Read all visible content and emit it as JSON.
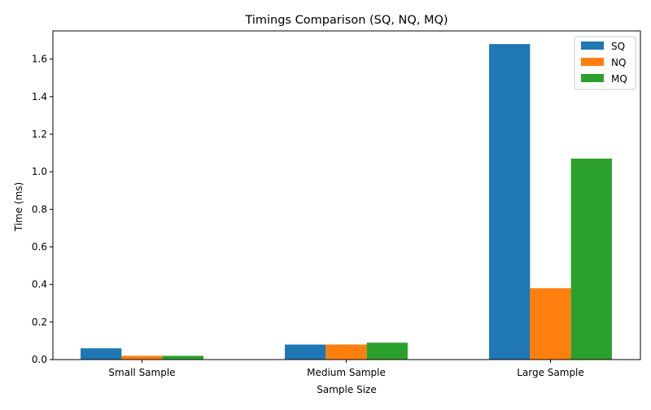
{
  "chart_data": {
    "type": "bar",
    "title": "Timings Comparison (SQ, NQ, MQ)",
    "xlabel": "Sample Size",
    "ylabel": "Time (ms)",
    "categories": [
      "Small Sample",
      "Medium Sample",
      "Large Sample"
    ],
    "series": [
      {
        "name": "SQ",
        "color": "#1f77b4",
        "values": [
          0.06,
          0.08,
          1.68
        ]
      },
      {
        "name": "NQ",
        "color": "#ff7f0e",
        "values": [
          0.02,
          0.08,
          0.38
        ]
      },
      {
        "name": "MQ",
        "color": "#2ca02c",
        "values": [
          0.02,
          0.09,
          1.07
        ]
      }
    ],
    "ylim": [
      0,
      1.75
    ],
    "yticks": [
      "0.0",
      "0.2",
      "0.4",
      "0.6",
      "0.8",
      "1.0",
      "1.2",
      "1.4",
      "1.6"
    ],
    "grid": false,
    "legend_position": "top-right"
  }
}
